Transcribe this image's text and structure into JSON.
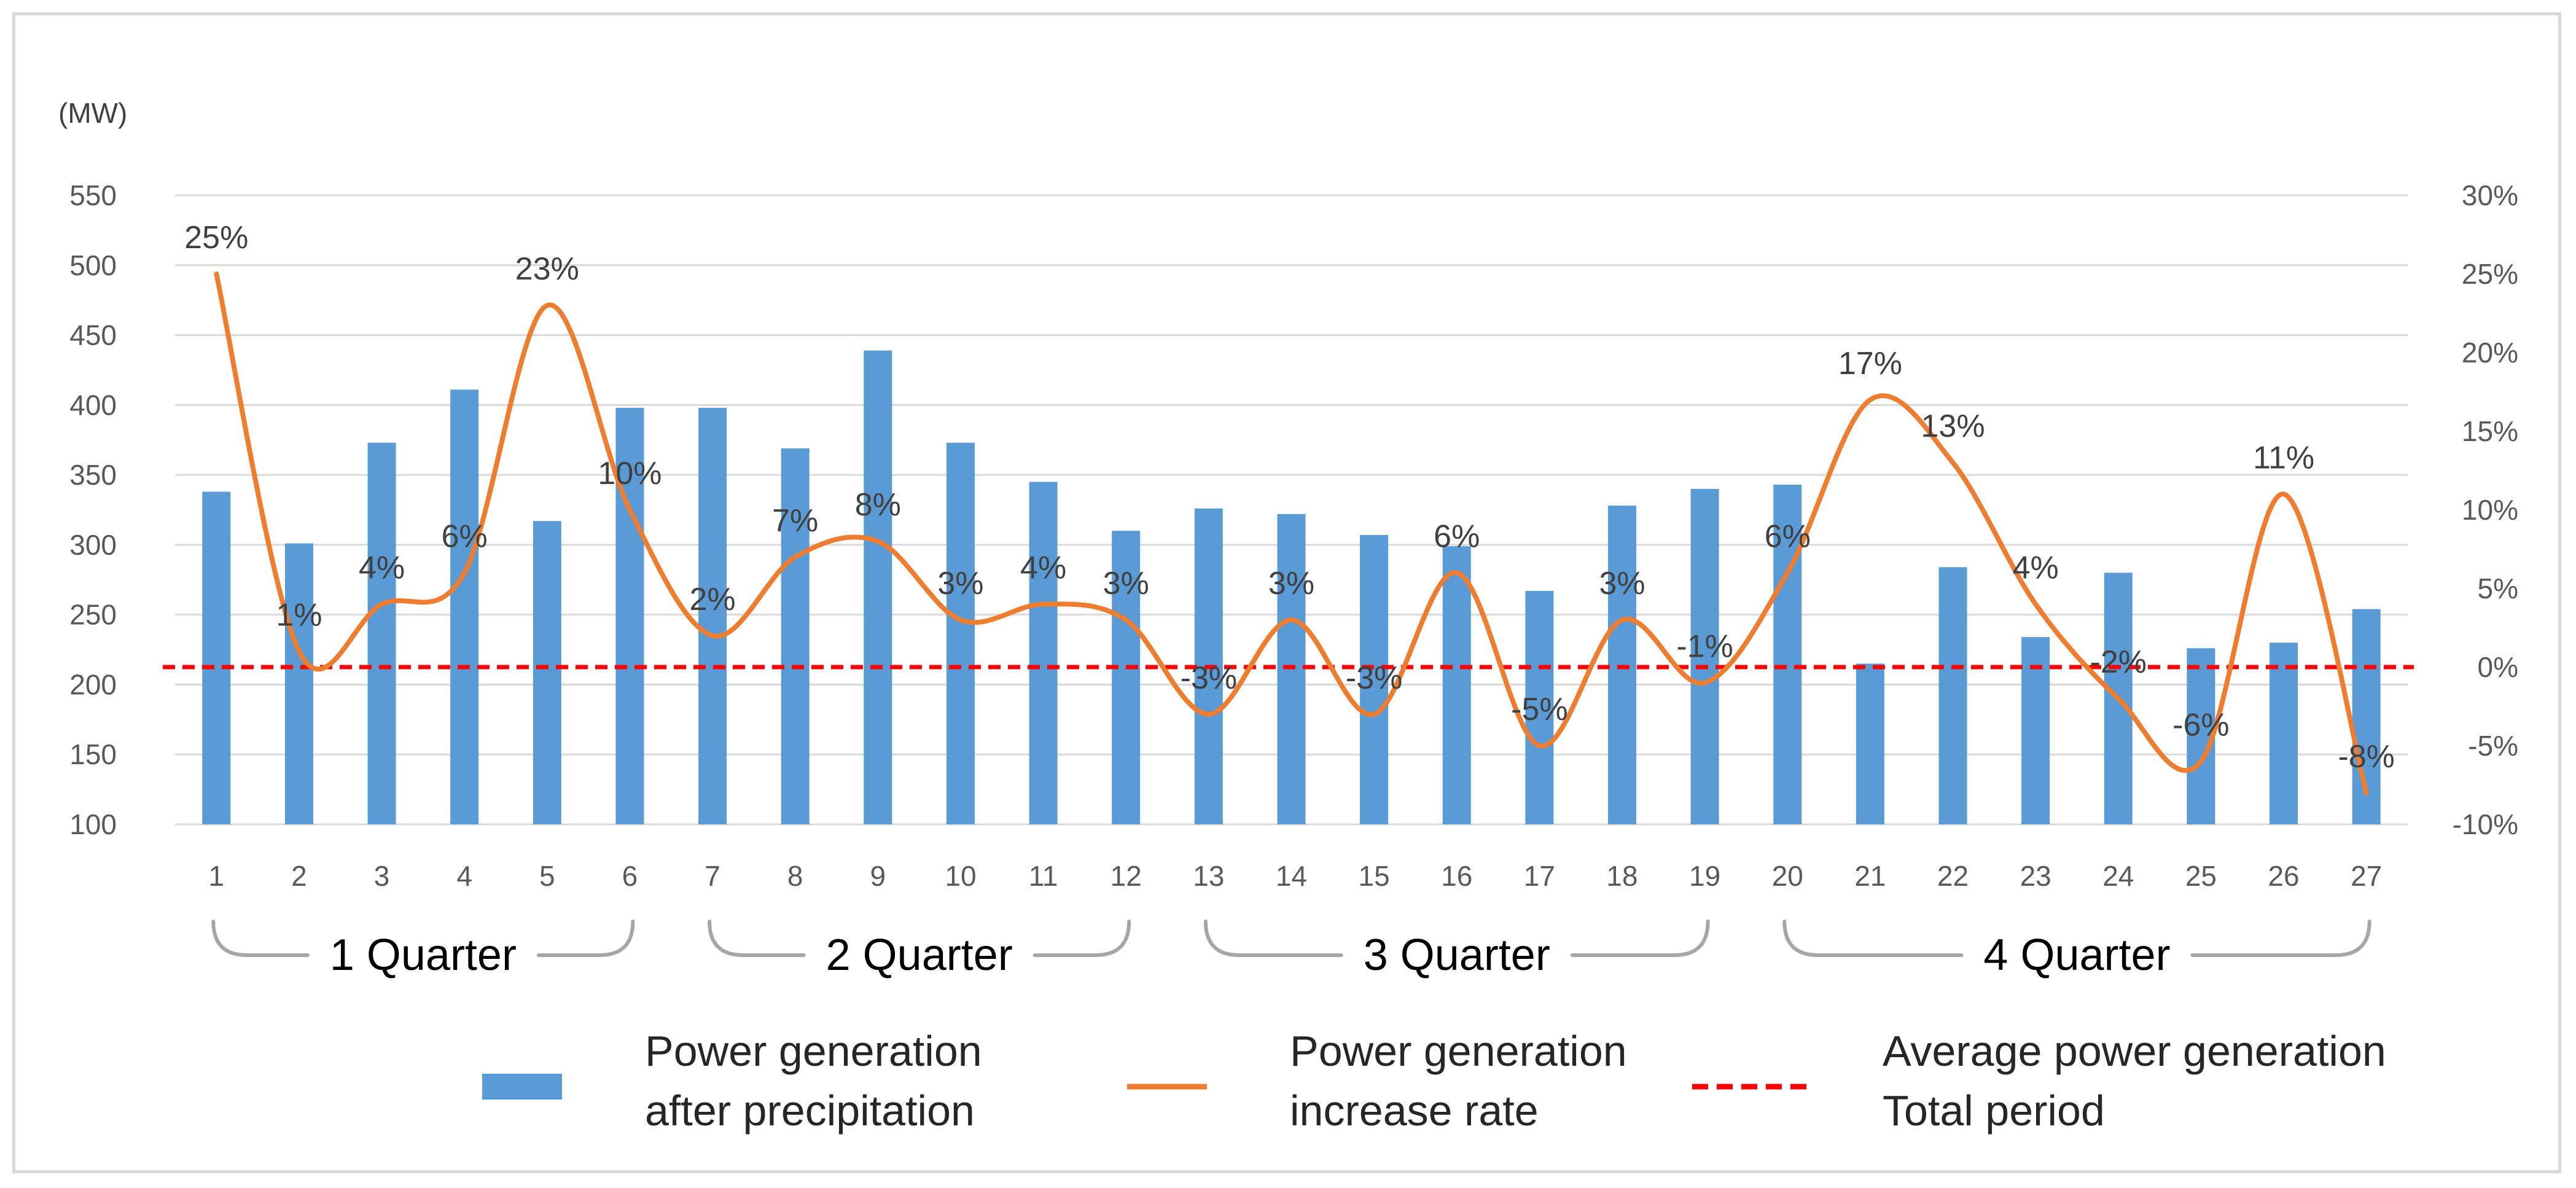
{
  "chart_data": {
    "type": "bar+line",
    "unit_left": "(MW)",
    "categories": [
      "1",
      "2",
      "3",
      "4",
      "5",
      "6",
      "7",
      "8",
      "9",
      "10",
      "11",
      "12",
      "13",
      "14",
      "15",
      "16",
      "17",
      "18",
      "19",
      "20",
      "21",
      "22",
      "23",
      "24",
      "25",
      "26",
      "27"
    ],
    "series": [
      {
        "name": "Power generation after precipitation",
        "type": "bar",
        "axis": "left",
        "color": "#5b9bd5",
        "values": [
          338,
          301,
          373,
          411,
          317,
          398,
          398,
          369,
          439,
          373,
          345,
          310,
          326,
          322,
          307,
          299,
          267,
          328,
          340,
          343,
          215,
          284,
          234,
          280,
          226,
          230,
          254
        ]
      },
      {
        "name": "Power generation increase rate",
        "type": "line",
        "axis": "right",
        "smooth": true,
        "color": "#ed7d31",
        "values": [
          25,
          1,
          4,
          6,
          23,
          10,
          2,
          7,
          8,
          3,
          4,
          3,
          -3,
          3,
          -3,
          6,
          -5,
          3,
          -1,
          6,
          17,
          13,
          4,
          -2,
          -6,
          11,
          -8
        ],
        "labels": [
          "25%",
          "1%",
          "4%",
          "6%",
          "23%",
          "10%",
          "2%",
          "7%",
          "8%",
          "3%",
          "4%",
          "3%",
          "-3%",
          "3%",
          "-3%",
          "6%",
          "-5%",
          "3%",
          "-1%",
          "6%",
          "17%",
          "13%",
          "4%",
          "-2%",
          "-6%",
          "11%",
          "-8%"
        ]
      },
      {
        "name": "Average power generation Total period",
        "type": "hline",
        "axis": "right",
        "style": "dashed",
        "color": "#ff0000",
        "value": 0
      }
    ],
    "y_left": {
      "min": 100,
      "max": 550,
      "step": 50,
      "ticks": [
        "550",
        "500",
        "450",
        "400",
        "350",
        "300",
        "250",
        "200",
        "150",
        "100"
      ]
    },
    "y_right": {
      "min": -10,
      "max": 30,
      "step": 5,
      "ticks": [
        "30%",
        "25%",
        "20%",
        "15%",
        "10%",
        "5%",
        "0%",
        "-5%",
        "-10%"
      ]
    },
    "grid": true,
    "quarters": [
      {
        "label": "1 Quarter",
        "from": 1,
        "to": 6
      },
      {
        "label": "2 Quarter",
        "from": 7,
        "to": 12
      },
      {
        "label": "3 Quarter",
        "from": 13,
        "to": 19
      },
      {
        "label": "4 Quarter",
        "from": 20,
        "to": 27
      }
    ],
    "legend": {
      "position": "bottom",
      "items": [
        {
          "line1": "Power generation",
          "line2": "after precipitation",
          "kind": "bar",
          "color": "#5b9bd5"
        },
        {
          "line1": "Power generation",
          "line2": "increase rate",
          "kind": "line",
          "color": "#ed7d31"
        },
        {
          "line1": "Average power generation",
          "line2": "Total period",
          "kind": "dashed",
          "color": "#ff0000"
        }
      ]
    }
  }
}
